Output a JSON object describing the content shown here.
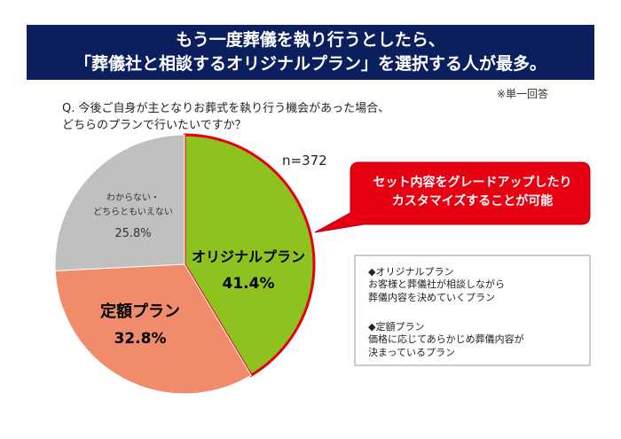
{
  "chart_data": {
    "type": "pie",
    "title": "もう一度葬儀を執り行うとしたら、\n「葬儀社と相談するオリジナルプラン」を選択する人が最多。",
    "note": "※単一回答",
    "question": "Q. 今後ご自身が主となりお葬式を執り行う機会があった場合、\nどちらのプランで行いたいですか？",
    "sample": "n=372",
    "callout": "セット内容をグレードアップしたり\nカスタマイズすることが可能",
    "categories": [
      "オリジナルプラン",
      "定額プラン",
      "わからない・\nどちらともいえない"
    ],
    "values": [
      41.4,
      32.8,
      25.8
    ],
    "value_labels": [
      "41.4%",
      "32.8%",
      "25.8%"
    ],
    "colors": [
      "#8dc21f",
      "#f08b6b",
      "#c0c0c0"
    ],
    "descriptions": [
      {
        "heading": "◆オリジナルプラン",
        "text": "お客様と葬儀社が相談しながら\n葬儀内容を決めていくプラン"
      },
      {
        "heading": "◆定額プラン",
        "text": "価格に応じてあらかじめ葬儀内容が\n決まっているプラン"
      }
    ]
  }
}
